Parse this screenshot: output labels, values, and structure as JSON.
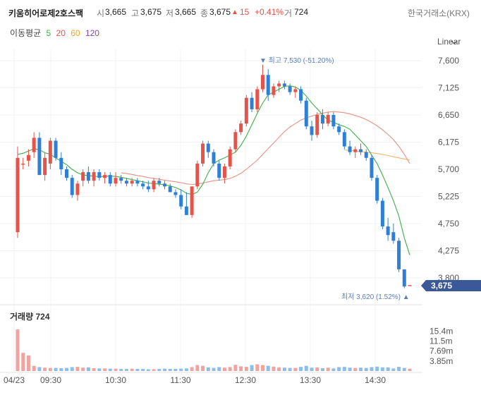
{
  "header": {
    "name": "키움히어로제2호스팩",
    "open_label": "시",
    "open": "3,665",
    "high_label": "고",
    "high": "3,675",
    "low_label": "저",
    "low": "3,665",
    "close_label": "종",
    "close": "3,675",
    "change_arrow": "▲",
    "change": "15",
    "change_pct": "+0.41%",
    "volume_label": "거",
    "volume": "724",
    "exchange": "한국거래소(KRX)"
  },
  "ma_legend": {
    "label": "이동평균",
    "items": [
      {
        "label": "5",
        "color": "#3fae49"
      },
      {
        "label": "20",
        "color": "#e5534b"
      },
      {
        "label": "60",
        "color": "#f5a623"
      },
      {
        "label": "120",
        "color": "#8e44ad"
      }
    ]
  },
  "scale_mode": "Linear",
  "price_badge": "3,675",
  "chart_data": {
    "type": "candlestick",
    "colors": {
      "up": "#e5534b",
      "down": "#2f7fd6",
      "ma5": "#3fae49",
      "ma20": "#e8917f",
      "ma60": "#f0b46a"
    },
    "ylim": [
      3620,
      7600
    ],
    "y_ticks": [
      "7,600",
      "7,125",
      "6,650",
      "6,175",
      "5,700",
      "5,225",
      "4,750",
      "4,275",
      "3,800"
    ],
    "x_ticks": [
      "04/23",
      "09:30",
      "10:30",
      "11:30",
      "12:30",
      "13:30",
      "14:30"
    ],
    "max_annotation": "▼ 최고 7,530 (-51.20%)",
    "min_annotation": "최저 3,620 (1.52%) ▲",
    "candles": [
      [
        4600,
        6100,
        4500,
        5900
      ],
      [
        5800,
        5900,
        5700,
        5800
      ],
      [
        5850,
        6050,
        5750,
        5950
      ],
      [
        6000,
        6350,
        5900,
        6250
      ],
      [
        6250,
        6350,
        5600,
        5600
      ],
      [
        5600,
        6000,
        5500,
        5900
      ],
      [
        5800,
        6250,
        5700,
        6200
      ],
      [
        6200,
        6250,
        5850,
        5900
      ],
      [
        5900,
        6000,
        5600,
        5700
      ],
      [
        5700,
        5750,
        5500,
        5550
      ],
      [
        5550,
        5600,
        5200,
        5250
      ],
      [
        5250,
        5500,
        5150,
        5450
      ],
      [
        5500,
        5700,
        5400,
        5650
      ],
      [
        5650,
        5750,
        5450,
        5500
      ],
      [
        5500,
        5700,
        5400,
        5650
      ],
      [
        5650,
        5700,
        5500,
        5550
      ],
      [
        5550,
        5650,
        5450,
        5600
      ],
      [
        5600,
        5650,
        5400,
        5450
      ],
      [
        5450,
        5650,
        5400,
        5550
      ],
      [
        5550,
        5600,
        5450,
        5500
      ],
      [
        5500,
        5550,
        5400,
        5450
      ],
      [
        5450,
        5550,
        5400,
        5500
      ],
      [
        5500,
        5550,
        5400,
        5450
      ],
      [
        5450,
        5500,
        5350,
        5400
      ],
      [
        5400,
        5500,
        5300,
        5350
      ],
      [
        5350,
        5550,
        5300,
        5500
      ],
      [
        5500,
        5550,
        5400,
        5450
      ],
      [
        5450,
        5500,
        5350,
        5400
      ],
      [
        5400,
        5450,
        5300,
        5300
      ],
      [
        5300,
        5350,
        5200,
        5250
      ],
      [
        5250,
        5350,
        5000,
        5050
      ],
      [
        5050,
        5300,
        4900,
        4900
      ],
      [
        4900,
        5400,
        4850,
        5400
      ],
      [
        5400,
        5850,
        5350,
        5800
      ],
      [
        5800,
        6200,
        5750,
        6150
      ],
      [
        6150,
        6200,
        5900,
        6000
      ],
      [
        6000,
        6050,
        5750,
        5800
      ],
      [
        5800,
        5850,
        5500,
        5550
      ],
      [
        5550,
        5800,
        5450,
        5750
      ],
      [
        5750,
        6100,
        5700,
        6050
      ],
      [
        6050,
        6400,
        6000,
        6350
      ],
      [
        6350,
        6550,
        6300,
        6500
      ],
      [
        6500,
        7000,
        6450,
        6950
      ],
      [
        6950,
        7050,
        6700,
        6750
      ],
      [
        6750,
        7150,
        6700,
        7100
      ],
      [
        7100,
        7530,
        7050,
        7350
      ],
      [
        7350,
        7450,
        6900,
        7000
      ],
      [
        7000,
        7200,
        6950,
        7150
      ],
      [
        7150,
        7250,
        7050,
        7200
      ],
      [
        7200,
        7250,
        7100,
        7150
      ],
      [
        7150,
        7200,
        7000,
        7050
      ],
      [
        7050,
        7150,
        6950,
        7100
      ],
      [
        7100,
        7150,
        6850,
        6900
      ],
      [
        6900,
        6950,
        6400,
        6450
      ],
      [
        6450,
        6550,
        6200,
        6300
      ],
      [
        6300,
        6700,
        6250,
        6650
      ],
      [
        6650,
        6750,
        6400,
        6500
      ],
      [
        6500,
        6700,
        6450,
        6650
      ],
      [
        6650,
        6700,
        6400,
        6450
      ],
      [
        6450,
        6500,
        6300,
        6350
      ],
      [
        6350,
        6400,
        6050,
        6100
      ],
      [
        6100,
        6200,
        5950,
        6000
      ],
      [
        6000,
        6100,
        5900,
        6050
      ],
      [
        6050,
        6150,
        5950,
        6000
      ],
      [
        6000,
        6050,
        5850,
        5900
      ],
      [
        5900,
        5950,
        5500,
        5550
      ],
      [
        5550,
        5600,
        5100,
        5150
      ],
      [
        5150,
        5200,
        4650,
        4700
      ],
      [
        4700,
        4850,
        4450,
        4550
      ],
      [
        4600,
        4750,
        4400,
        4450
      ],
      [
        4450,
        4500,
        3900,
        3950
      ],
      [
        3950,
        3950,
        3620,
        3650
      ],
      [
        3665,
        3675,
        3665,
        3675
      ]
    ],
    "ma5": [
      5960,
      5980,
      6020,
      6060,
      6040,
      5990,
      5960,
      5900,
      5840,
      5780,
      5700,
      5640,
      5600,
      5590,
      5580,
      5570,
      5575,
      5580,
      5575,
      5560,
      5540,
      5520,
      5500,
      5480,
      5460,
      5450,
      5440,
      5430,
      5410,
      5380,
      5340,
      5280,
      5260,
      5300,
      5440,
      5640,
      5800,
      5860,
      5900,
      5950,
      6000,
      6120,
      6280,
      6480,
      6680,
      6860,
      7000,
      7050,
      7100,
      7150,
      7160,
      7140,
      7080,
      6980,
      6860,
      6760,
      6650,
      6560,
      6520,
      6480,
      6450,
      6400,
      6300,
      6200,
      6100,
      5950,
      5800,
      5600,
      5380,
      5150,
      4880,
      4500,
      4200
    ],
    "ma20": [
      null,
      null,
      null,
      null,
      null,
      null,
      null,
      null,
      null,
      null,
      null,
      null,
      null,
      null,
      null,
      null,
      null,
      null,
      null,
      5640,
      5625,
      5610,
      5590,
      5575,
      5555,
      5540,
      5525,
      5510,
      5495,
      5480,
      5465,
      5445,
      5435,
      5440,
      5460,
      5480,
      5500,
      5510,
      5520,
      5540,
      5580,
      5630,
      5700,
      5780,
      5860,
      5960,
      6060,
      6160,
      6260,
      6360,
      6440,
      6500,
      6560,
      6600,
      6630,
      6660,
      6680,
      6700,
      6710,
      6700,
      6690,
      6670,
      6640,
      6610,
      6570,
      6520,
      6460,
      6390,
      6310,
      6220,
      6100,
      5960,
      5800
    ],
    "ma60": [
      null,
      null,
      null,
      null,
      null,
      null,
      null,
      null,
      null,
      null,
      null,
      null,
      null,
      null,
      null,
      null,
      null,
      null,
      null,
      null,
      null,
      null,
      null,
      null,
      null,
      null,
      null,
      null,
      null,
      null,
      null,
      null,
      null,
      null,
      null,
      null,
      null,
      null,
      null,
      null,
      null,
      null,
      null,
      null,
      null,
      null,
      null,
      null,
      null,
      null,
      null,
      null,
      null,
      null,
      null,
      null,
      null,
      null,
      null,
      null,
      6040,
      6030,
      6020,
      6010,
      6000,
      5990,
      5975,
      5960,
      5940,
      5920,
      5900,
      5880,
      5860
    ],
    "volume_label": "거래량",
    "volume_value": "724",
    "volume_ticks": [
      "15.4m",
      "11.5m",
      "7.69m",
      "3.85m"
    ],
    "volume_max": 19000000,
    "volume": [
      16000000,
      7000000,
      6000000,
      2000000,
      1500000,
      1300000,
      1200000,
      1200000,
      1100000,
      1200000,
      1500000,
      1600000,
      1300000,
      1400000,
      1100000,
      1000000,
      1000000,
      900000,
      900000,
      800000,
      800000,
      900000,
      800000,
      800000,
      700000,
      700000,
      800000,
      900000,
      800000,
      800000,
      900000,
      1000000,
      1500000,
      2300000,
      2000000,
      1400000,
      1200000,
      1500000,
      1300000,
      1500000,
      2400000,
      1800000,
      1600000,
      2300000,
      2600000,
      2300000,
      2000000,
      1700000,
      1400000,
      1300000,
      1200000,
      1200000,
      1600000,
      2000000,
      1300000,
      1400000,
      1100000,
      1300000,
      1000000,
      1500000,
      1600000,
      1300000,
      1200000,
      1300000,
      1200000,
      1500000,
      1700000,
      1400000,
      1400000,
      1000000,
      1600000,
      1200000,
      900000
    ]
  }
}
